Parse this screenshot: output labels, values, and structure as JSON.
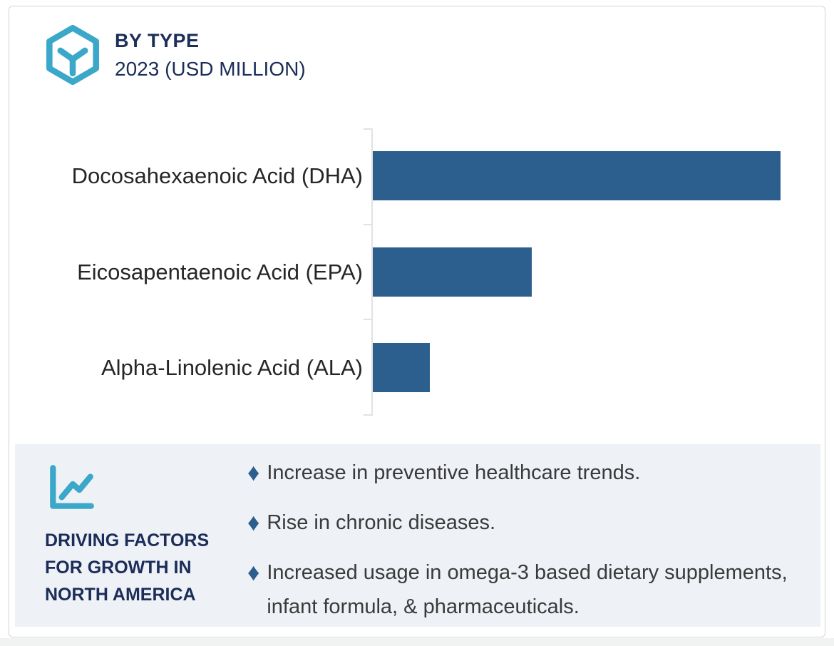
{
  "header": {
    "title": "BY TYPE",
    "subtitle": "2023 (USD MILLION)"
  },
  "chart_data": {
    "type": "bar",
    "orientation": "horizontal",
    "title": "BY TYPE",
    "subtitle": "2023 (USD MILLION)",
    "categories": [
      "Docosahexaenoic Acid (DHA)",
      "Eicosapentaenoic Acid (EPA)",
      "Alpha-Linolenic Acid (ALA)"
    ],
    "values": [
      100,
      39,
      14
    ],
    "value_units": "relative bar length, % of largest bar (no numeric axis labels shown)",
    "xlabel": "",
    "ylabel": "",
    "gridlines": false,
    "legend": false,
    "value_labels_shown": false,
    "axis_style": "single light-gray vertical baseline with small ticks at category boundaries"
  },
  "driving_factors": {
    "title": "DRIVING FACTORS FOR GROWTH IN NORTH AMERICA",
    "bullets": [
      "Increase in preventive healthcare trends.",
      "Rise in chronic diseases.",
      "Increased usage in omega-3 based dietary supplements, infant formula, & pharmaceuticals."
    ],
    "bullet_glyph": "♦"
  },
  "icons": {
    "header_icon": "hexagon-cube-icon",
    "panel_icon": "line-chart-icon"
  },
  "colors": {
    "bar-blue": "#2d5f8e",
    "teal": "#3ba8c9",
    "navy": "#1b2d58",
    "panel-bg": "#eef1f6",
    "axis-gray": "#e2e2e2",
    "border-gray": "#d3d3d3"
  }
}
